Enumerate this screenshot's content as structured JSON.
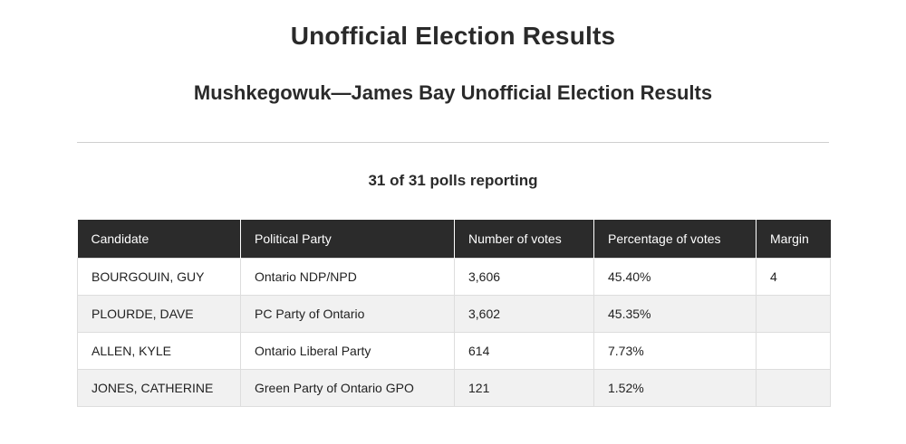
{
  "page": {
    "title": "Unofficial Election Results",
    "subtitle": "Mushkegowuk—James Bay Unofficial Election Results",
    "polls_reporting": "31 of 31 polls reporting"
  },
  "table": {
    "headers": {
      "candidate": "Candidate",
      "party": "Political Party",
      "votes": "Number of votes",
      "percentage": "Percentage of votes",
      "margin": "Margin"
    },
    "rows": [
      {
        "candidate": "BOURGOUIN, GUY",
        "party": "Ontario NDP/NPD",
        "votes": "3,606",
        "percentage": "45.40%",
        "margin": "4"
      },
      {
        "candidate": "PLOURDE, DAVE",
        "party": "PC Party of Ontario",
        "votes": "3,602",
        "percentage": "45.35%",
        "margin": ""
      },
      {
        "candidate": "ALLEN, KYLE",
        "party": "Ontario Liberal Party",
        "votes": "614",
        "percentage": "7.73%",
        "margin": ""
      },
      {
        "candidate": "JONES, CATHERINE",
        "party": "Green Party of Ontario GPO",
        "votes": "121",
        "percentage": "1.52%",
        "margin": ""
      }
    ]
  },
  "colors": {
    "header_bg": "#2b2b2b",
    "header_text": "#ffffff",
    "row_alt_bg": "#f1f1f1",
    "border": "#dddddd"
  }
}
